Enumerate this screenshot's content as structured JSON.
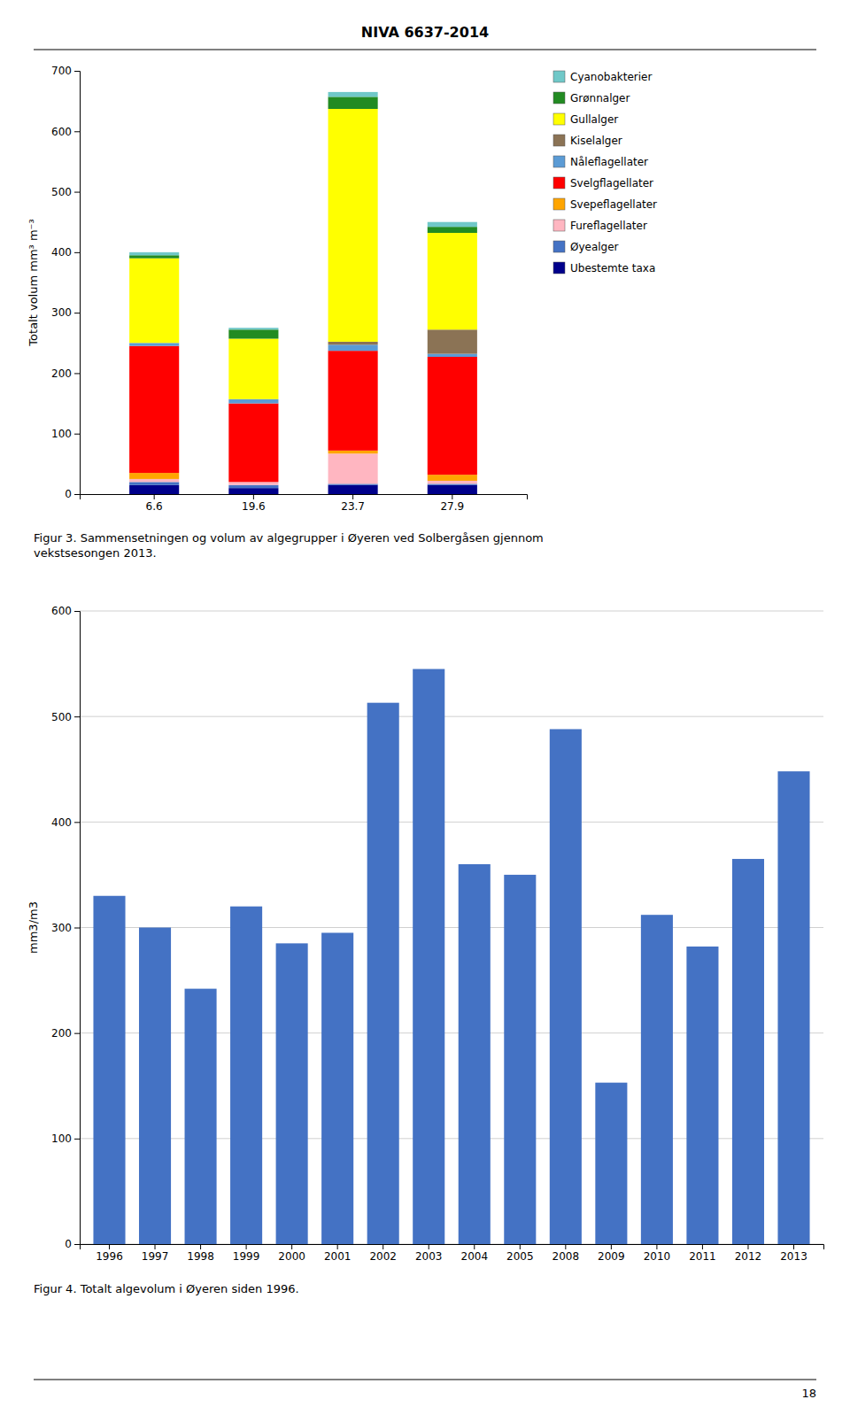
{
  "title": "NIVA 6637-2014",
  "page_number": "18",
  "chart_data": [
    {
      "type": "bar",
      "stacked": true,
      "caption": "Figur 3. Sammensetningen og volum av algegrupper i Øyeren ved Solbergåsen gjennom\nvekstsesongen 2013.",
      "categories": [
        "6.6",
        "19.6",
        "23.7",
        "27.9"
      ],
      "y_label": "Totalt volum mm³ m⁻³",
      "ylim": [
        0,
        700
      ],
      "yticks": [
        0,
        100,
        200,
        300,
        400,
        500,
        600,
        700
      ],
      "grid": false,
      "legend": "right",
      "series": [
        {
          "name": "Cyanobakterier",
          "color": "#70C8C8",
          "values": [
            5,
            3,
            8,
            8
          ]
        },
        {
          "name": "Grønnalger",
          "color": "#228B22",
          "values": [
            5,
            15,
            20,
            10
          ]
        },
        {
          "name": "Gullalger",
          "color": "#FFFF00",
          "values": [
            140,
            100,
            385,
            160
          ]
        },
        {
          "name": "Kiselalger",
          "color": "#8B7355",
          "values": [
            0,
            0,
            5,
            40
          ]
        },
        {
          "name": "Nåleflagellater",
          "color": "#5B9BD5",
          "values": [
            5,
            7,
            10,
            5
          ]
        },
        {
          "name": "Svelgflagellater",
          "color": "#FF0000",
          "values": [
            210,
            130,
            165,
            195
          ]
        },
        {
          "name": "Svepeflagellater",
          "color": "#FFA500",
          "values": [
            10,
            0,
            5,
            10
          ]
        },
        {
          "name": "Fureflagellater",
          "color": "#FFB6C1",
          "values": [
            5,
            5,
            50,
            5
          ]
        },
        {
          "name": "Øyealger",
          "color": "#4472C4",
          "values": [
            5,
            5,
            2,
            2
          ]
        },
        {
          "name": "Ubestemte taxa",
          "color": "#00008B",
          "values": [
            15,
            10,
            15,
            15
          ]
        }
      ]
    },
    {
      "type": "bar",
      "caption": "Figur 4. Totalt algevolum i Øyeren siden 1996.",
      "categories": [
        "1996",
        "1997",
        "1998",
        "1999",
        "2000",
        "2001",
        "2002",
        "2003",
        "2004",
        "2005",
        "2008",
        "2009",
        "2010",
        "2011",
        "2012",
        "2013"
      ],
      "values": [
        330,
        300,
        242,
        320,
        285,
        295,
        513,
        545,
        360,
        350,
        488,
        153,
        312,
        282,
        365,
        448
      ],
      "color": "#4472C4",
      "y_label": "mm3/m3",
      "ylim": [
        0,
        600
      ],
      "yticks": [
        0,
        100,
        200,
        300,
        400,
        500,
        600
      ],
      "grid": true
    }
  ]
}
